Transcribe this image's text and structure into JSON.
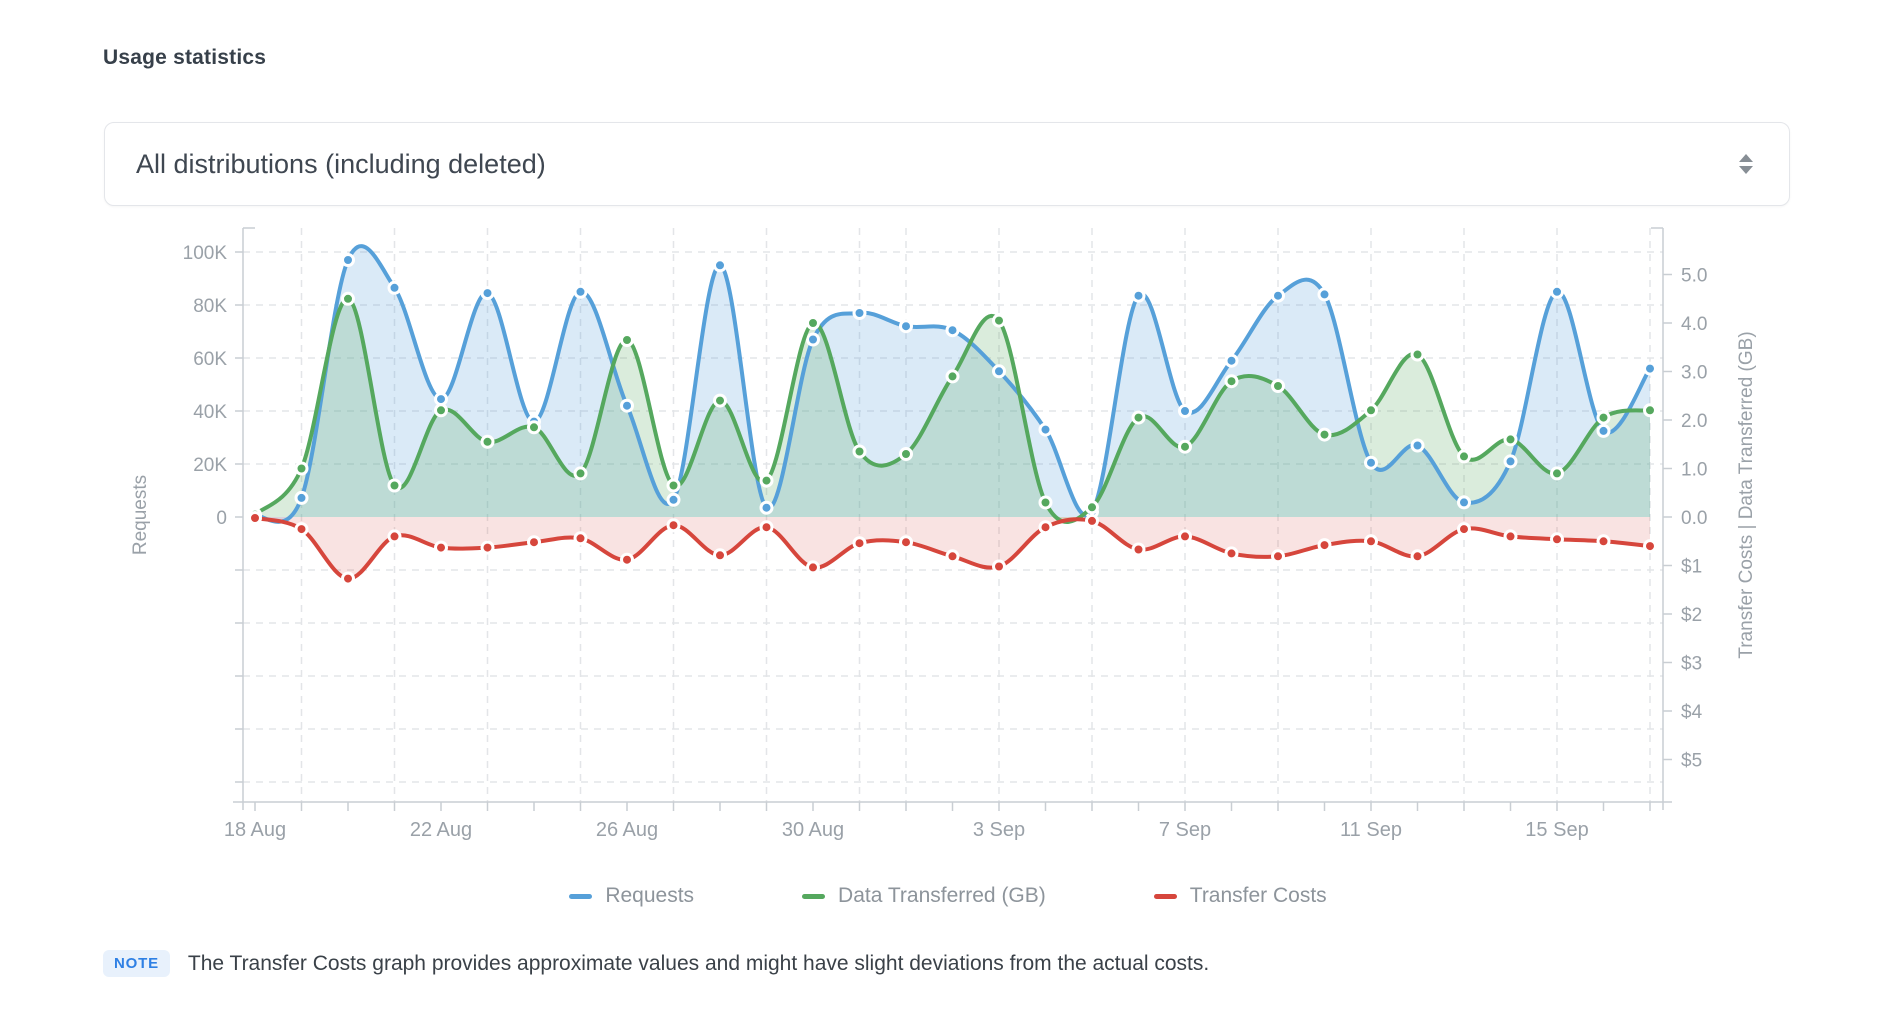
{
  "page": {
    "title": "Usage statistics"
  },
  "filter": {
    "value": "All distributions (including deleted)",
    "updown_icon": "up-down-arrows"
  },
  "chart_data": {
    "type": "area",
    "x": [
      "18 Aug",
      "19 Aug",
      "20 Aug",
      "21 Aug",
      "22 Aug",
      "23 Aug",
      "24 Aug",
      "25 Aug",
      "26 Aug",
      "27 Aug",
      "28 Aug",
      "29 Aug",
      "30 Aug",
      "31 Aug",
      "1 Sep",
      "2 Sep",
      "3 Sep",
      "4 Sep",
      "5 Sep",
      "6 Sep",
      "7 Sep",
      "8 Sep",
      "9 Sep",
      "10 Sep",
      "11 Sep",
      "12 Sep",
      "13 Sep",
      "14 Sep",
      "15 Sep",
      "16 Sep",
      "17 Sep"
    ],
    "x_tick_labels": [
      "18 Aug",
      "22 Aug",
      "26 Aug",
      "30 Aug",
      "3 Sep",
      "7 Sep",
      "11 Sep",
      "15 Sep"
    ],
    "series": [
      {
        "name": "Requests",
        "axis": "left",
        "color": "#56a0d9",
        "values": [
          500,
          7200,
          97000,
          86500,
          44500,
          84500,
          36000,
          85000,
          42000,
          6500,
          95000,
          3500,
          67000,
          77000,
          72000,
          70500,
          55000,
          33000,
          2000,
          83500,
          40000,
          59000,
          83500,
          84000,
          20500,
          27000,
          5500,
          21000,
          85000,
          32500,
          56000
        ]
      },
      {
        "name": "Data Transferred (GB)",
        "axis": "right_gb",
        "color": "#55a85e",
        "values": [
          0.05,
          1.0,
          4.5,
          0.65,
          2.2,
          1.55,
          1.85,
          0.9,
          3.65,
          0.65,
          2.4,
          0.75,
          4.0,
          1.35,
          1.3,
          2.9,
          4.05,
          0.3,
          0.2,
          2.05,
          1.45,
          2.8,
          2.7,
          1.7,
          2.2,
          3.35,
          1.25,
          1.6,
          0.9,
          2.05,
          2.2
        ]
      },
      {
        "name": "Transfer Costs",
        "axis": "right_cost",
        "color": "#d6463c",
        "values": [
          0.02,
          0.25,
          1.27,
          0.4,
          0.63,
          0.63,
          0.52,
          0.44,
          0.88,
          0.17,
          0.79,
          0.21,
          1.04,
          0.54,
          0.52,
          0.81,
          1.02,
          0.21,
          0.08,
          0.67,
          0.4,
          0.75,
          0.81,
          0.58,
          0.5,
          0.81,
          0.25,
          0.4,
          0.46,
          0.5,
          0.6
        ]
      }
    ],
    "left_axis": {
      "title": "Requests",
      "tick_labels": [
        "100K",
        "80K",
        "60K",
        "40K",
        "20K",
        "0"
      ],
      "max": 100000
    },
    "right_axis": {
      "title": "Transfer Costs | Data Transferred (GB)",
      "gb_tick_labels": [
        "5.0",
        "4.0",
        "3.0",
        "2.0",
        "1.0",
        "0.0"
      ],
      "cost_tick_labels": [
        "$1",
        "$2",
        "$3",
        "$4",
        "$5"
      ]
    },
    "grid": true,
    "legend_position": "bottom",
    "colors": {
      "grid": "#e3e5e8",
      "axis": "#c9ced3",
      "tick_text": "#9aa1a8"
    }
  },
  "legend": {
    "items": [
      {
        "label": "Requests",
        "color": "#56a0d9"
      },
      {
        "label": "Data Transferred (GB)",
        "color": "#55a85e"
      },
      {
        "label": "Transfer Costs",
        "color": "#d6463c"
      }
    ]
  },
  "note": {
    "badge": "NOTE",
    "text": "The Transfer Costs graph provides approximate values and might have slight deviations from the actual costs."
  }
}
